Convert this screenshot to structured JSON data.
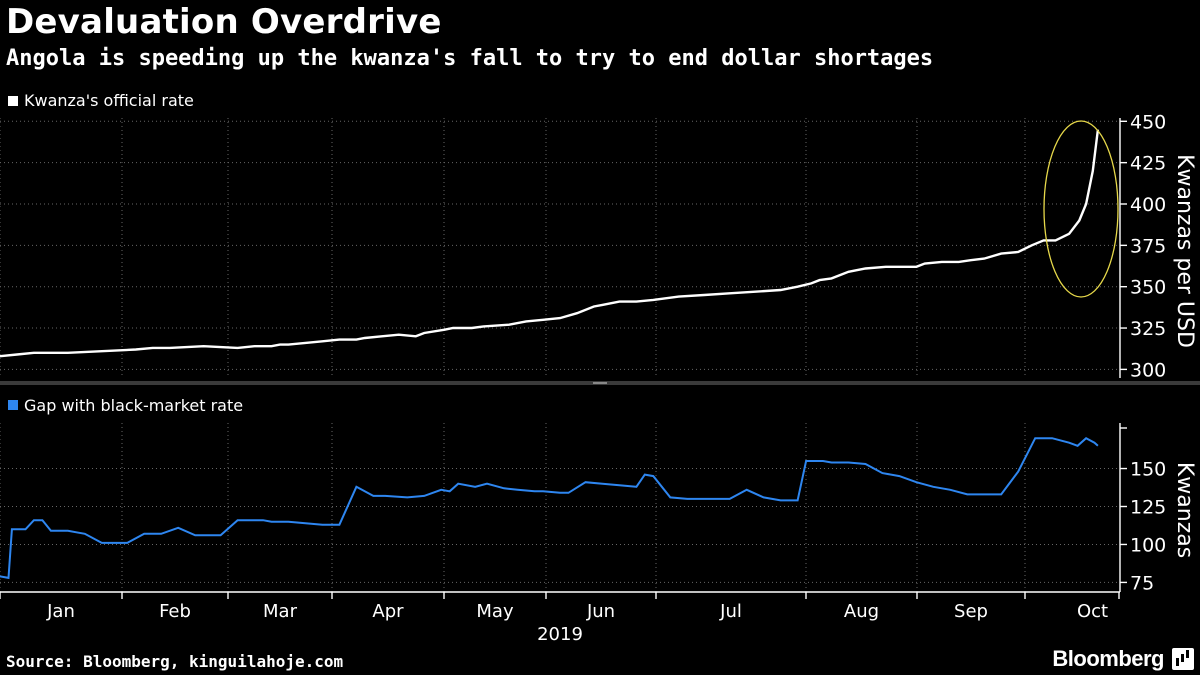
{
  "title": "Devaluation Overdrive",
  "subtitle": "Angola is speeding up the kwanza's fall to try to end dollar shortages",
  "source": "Source:  Bloomberg, kinguilahoje.com",
  "brand": "Bloomberg",
  "colors": {
    "background": "#000000",
    "official": "#ffffff",
    "gap": "#2e86f0",
    "highlight": "#e6d84a",
    "grid": "#666666"
  },
  "chart_data": [
    {
      "type": "line",
      "legend": "Kwanza's official rate",
      "ylabel": "Kwanzas per USD",
      "ylim": [
        296,
        452
      ],
      "yticks": [
        300,
        325,
        350,
        375,
        400,
        425,
        450
      ],
      "annotation": "highlight-ellipse",
      "series": [
        {
          "name": "Kwanza's official rate",
          "x": [
            0,
            10,
            20,
            40,
            60,
            80,
            90,
            100,
            120,
            140,
            150,
            160,
            165,
            170,
            180,
            190,
            200,
            210,
            215,
            225,
            235,
            245,
            250,
            262,
            267,
            278,
            285,
            300,
            310,
            320,
            330,
            340,
            350,
            355,
            365,
            375,
            385,
            400,
            415,
            430,
            445,
            460,
            470,
            478,
            483,
            490,
            500,
            510,
            522,
            530,
            540,
            545,
            555,
            560,
            565,
            572,
            580,
            590,
            600,
            608,
            615,
            622,
            630,
            636,
            640,
            644,
            647
          ],
          "y": [
            308,
            309,
            310,
            310,
            311,
            312,
            313,
            313,
            314,
            313,
            314,
            314,
            315,
            315,
            316,
            317,
            318,
            318,
            319,
            320,
            321,
            320,
            322,
            324,
            325,
            325,
            326,
            327,
            329,
            330,
            331,
            334,
            338,
            339,
            341,
            341,
            342,
            344,
            345,
            346,
            347,
            348,
            350,
            352,
            354,
            355,
            359,
            361,
            362,
            362,
            362,
            364,
            365,
            365,
            365,
            366,
            367,
            370,
            371,
            375,
            378,
            378,
            382,
            390,
            400,
            420,
            445
          ]
        }
      ]
    },
    {
      "type": "line",
      "legend": "Gap with black-market rate",
      "ylabel": "Kwanzas",
      "ylim": [
        70,
        180
      ],
      "yticks": [
        75,
        100,
        125,
        150
      ],
      "xlabels": [
        "Jan",
        "Feb",
        "Mar",
        "Apr",
        "May",
        "Jun",
        "Jul",
        "Aug",
        "Sep",
        "Oct"
      ],
      "xyear": "2019",
      "series": [
        {
          "name": "Gap with black-market rate",
          "x": [
            0,
            5,
            7,
            15,
            20,
            25,
            30,
            40,
            45,
            50,
            60,
            65,
            75,
            85,
            95,
            105,
            115,
            130,
            140,
            150,
            155,
            160,
            170,
            180,
            190,
            200,
            210,
            220,
            227,
            240,
            250,
            260,
            265,
            270,
            280,
            287,
            297,
            305,
            315,
            320,
            330,
            335,
            345,
            355,
            365,
            375,
            380,
            385,
            395,
            405,
            420,
            430,
            440,
            450,
            460,
            470,
            475,
            480,
            485,
            490,
            500,
            510,
            520,
            530,
            540,
            550,
            560,
            570,
            580,
            590,
            600,
            610,
            620,
            630,
            635,
            640,
            645,
            647
          ],
          "y": [
            79,
            78,
            110,
            110,
            116,
            116,
            109,
            109,
            108,
            107,
            101,
            101,
            101,
            107,
            107,
            111,
            106,
            106,
            116,
            116,
            116,
            115,
            115,
            114,
            113,
            113,
            138,
            132,
            132,
            131,
            132,
            136,
            135,
            140,
            138,
            140,
            137,
            136,
            135,
            135,
            134,
            134,
            141,
            140,
            139,
            138,
            146,
            145,
            131,
            130,
            130,
            130,
            136,
            131,
            129,
            129,
            155,
            155,
            155,
            154,
            154,
            153,
            147,
            145,
            141,
            138,
            136,
            133,
            133,
            133,
            148,
            170,
            170,
            167,
            165,
            170,
            167,
            165
          ]
        }
      ]
    }
  ]
}
